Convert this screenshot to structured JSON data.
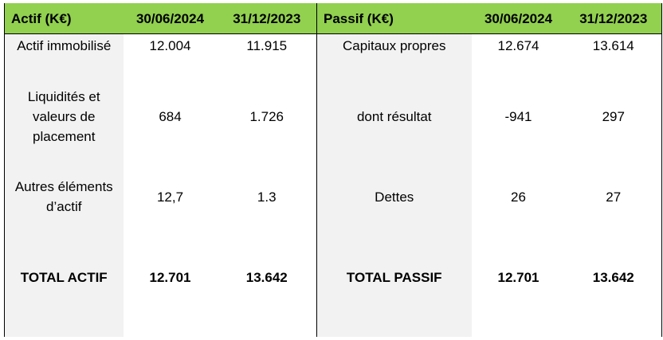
{
  "header": {
    "actif_label": "Actif (K€)",
    "passif_label": "Passif (K€)",
    "date1": "30/06/2024",
    "date2": "31/12/2023"
  },
  "rows": [
    {
      "actif_label": "Actif immobilisé",
      "actif_v1": "12.004",
      "actif_v2": "11.915",
      "passif_label": "Capitaux propres",
      "passif_v1": "12.674",
      "passif_v2": "13.614"
    },
    {
      "actif_label": "Liquidités et valeurs de placement",
      "actif_v1": "684",
      "actif_v2": "1.726",
      "passif_label": "dont résultat",
      "passif_v1": "-941",
      "passif_v2": "297"
    },
    {
      "actif_label": "Autres éléments d’actif",
      "actif_v1": "12,7",
      "actif_v2": "1.3",
      "passif_label": "Dettes",
      "passif_v1": "26",
      "passif_v2": "27"
    },
    {
      "actif_label": "TOTAL ACTIF",
      "actif_v1": "12.701",
      "actif_v2": "13.642",
      "passif_label": "TOTAL PASSIF",
      "passif_v1": "12.701",
      "passif_v2": "13.642"
    }
  ]
}
